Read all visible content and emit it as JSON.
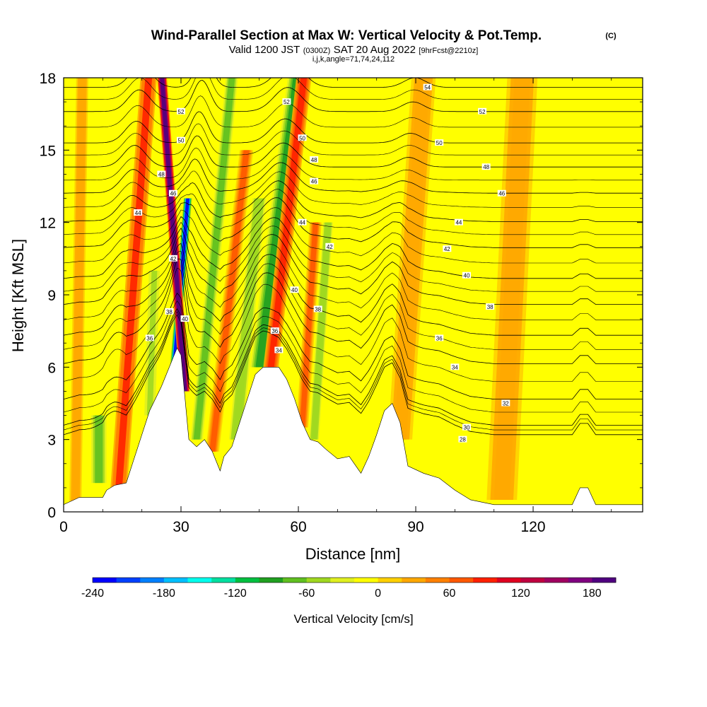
{
  "chart_data": {
    "type": "heatmap",
    "title": "Wind-Parallel Section at Max W: Vertical Velocity & Pot.Temp.",
    "title_mark": "(C)",
    "subtitle_parts": [
      "Valid 1200 JST",
      "(0300Z)",
      "SAT 20 Aug 2022",
      "[9hrFcst@2210z]"
    ],
    "subtitle2": "i,j,k,angle=71,74,24,112",
    "xlabel": "Distance [nm]",
    "ylabel": "Height [Kft MSL]",
    "xlim": [
      0,
      148
    ],
    "ylim": [
      0,
      18
    ],
    "xticks": [
      0,
      30,
      60,
      90,
      120
    ],
    "yticks": [
      0,
      3,
      6,
      9,
      12,
      15,
      18
    ],
    "colorbar": {
      "label": "Vertical Velocity [cm/s]",
      "range": [
        -240,
        200
      ],
      "ticks": [
        -240,
        -180,
        -120,
        -60,
        0,
        60,
        120,
        180
      ],
      "colors": [
        "#0000ff",
        "#0040ff",
        "#0080ff",
        "#00c0ff",
        "#00ffee",
        "#00e0a0",
        "#00c040",
        "#20a020",
        "#60c020",
        "#a0d820",
        "#e0f020",
        "#ffff00",
        "#ffd000",
        "#ffa800",
        "#ff8000",
        "#ff5800",
        "#ff2000",
        "#e00020",
        "#c00040",
        "#a00060",
        "#800080",
        "#500080"
      ]
    },
    "terrain": [
      [
        0,
        0.3
      ],
      [
        4,
        0.6
      ],
      [
        10,
        0.6
      ],
      [
        11,
        0.9
      ],
      [
        13,
        1.1
      ],
      [
        16,
        1.2
      ],
      [
        18,
        2.2
      ],
      [
        20,
        3.2
      ],
      [
        22,
        4.2
      ],
      [
        25,
        5.2
      ],
      [
        27,
        6.0
      ],
      [
        29,
        6.8
      ],
      [
        30,
        6.5
      ],
      [
        32,
        3.0
      ],
      [
        34,
        2.7
      ],
      [
        36,
        3.0
      ],
      [
        38,
        2.5
      ],
      [
        40,
        1.7
      ],
      [
        41,
        2.3
      ],
      [
        43,
        2.7
      ],
      [
        45,
        3.7
      ],
      [
        47,
        4.7
      ],
      [
        49,
        5.7
      ],
      [
        51,
        6.0
      ],
      [
        55,
        6.0
      ],
      [
        57,
        5.5
      ],
      [
        59,
        4.7
      ],
      [
        61,
        3.7
      ],
      [
        63,
        3.0
      ],
      [
        65,
        2.9
      ],
      [
        67,
        2.6
      ],
      [
        70,
        2.2
      ],
      [
        73,
        2.3
      ],
      [
        76,
        1.6
      ],
      [
        78,
        2.3
      ],
      [
        80,
        3.2
      ],
      [
        82,
        4.2
      ],
      [
        84,
        4.5
      ],
      [
        86,
        3.7
      ],
      [
        88,
        1.9
      ],
      [
        92,
        1.6
      ],
      [
        96,
        1.4
      ],
      [
        100,
        0.9
      ],
      [
        104,
        0.5
      ],
      [
        110,
        0.3
      ],
      [
        130,
        0.3
      ],
      [
        132,
        1.0
      ],
      [
        134,
        1.0
      ],
      [
        136,
        0.3
      ],
      [
        148,
        0.3
      ]
    ],
    "w_field": [
      {
        "x": 14,
        "z0": 0.8,
        "z1": 18,
        "w": 80,
        "tilt": 0.45,
        "width": 2.2
      },
      {
        "x": 9,
        "z0": 1.2,
        "z1": 4.0,
        "w": -70,
        "tilt": 0,
        "width": 2.5
      },
      {
        "x": 22,
        "z0": 4.0,
        "z1": 10.0,
        "w": -50,
        "tilt": 0.2,
        "width": 1.8
      },
      {
        "x": 28,
        "z0": 5.5,
        "z1": 13.0,
        "w": -240,
        "tilt": 0.5,
        "width": 1.1
      },
      {
        "x": 31,
        "z0": 5.0,
        "z1": 18.0,
        "w": 200,
        "tilt": -0.45,
        "width": 1.3
      },
      {
        "x": 34,
        "z0": 3.0,
        "z1": 18.0,
        "w": -80,
        "tilt": 0.6,
        "width": 2.0
      },
      {
        "x": 38,
        "z0": 2.5,
        "z1": 15.0,
        "w": 70,
        "tilt": 0.7,
        "width": 1.8
      },
      {
        "x": 44,
        "z0": 3.0,
        "z1": 13.0,
        "w": -60,
        "tilt": 0.6,
        "width": 2.2
      },
      {
        "x": 50,
        "z0": 6.0,
        "z1": 18.0,
        "w": -90,
        "tilt": 0.8,
        "width": 2.4
      },
      {
        "x": 53,
        "z0": 6.0,
        "z1": 18.0,
        "w": 90,
        "tilt": 0.7,
        "width": 2.0
      },
      {
        "x": 61,
        "z0": 3.5,
        "z1": 12.0,
        "w": 70,
        "tilt": 0.4,
        "width": 1.6
      },
      {
        "x": 64,
        "z0": 3.0,
        "z1": 12.0,
        "w": -60,
        "tilt": 0.4,
        "width": 1.6
      },
      {
        "x": 86,
        "z0": 3.0,
        "z1": 18.0,
        "w": 35,
        "tilt": 0.4,
        "width": 4.0
      },
      {
        "x": 112,
        "z0": 0.5,
        "z1": 18.0,
        "w": 30,
        "tilt": 0.3,
        "width": 5.0
      },
      {
        "x": 3,
        "z0": 0.3,
        "z1": 18.0,
        "w": 35,
        "tilt": 0.1,
        "width": 2.0
      }
    ],
    "isentrope_values": [
      28,
      30,
      32,
      34,
      36,
      38,
      40,
      42,
      44,
      46,
      48,
      50,
      52,
      54
    ],
    "isentrope_heights_far": [
      3.0,
      3.4,
      4.5,
      6.0,
      7.2,
      8.5,
      9.6,
      10.9,
      12.0,
      13.2,
      14.3,
      15.3,
      16.6,
      17.6
    ],
    "contour_labels": [
      {
        "text": "54",
        "x": 93,
        "z": 17.6
      },
      {
        "text": "52",
        "x": 107,
        "z": 16.6
      },
      {
        "text": "50",
        "x": 96,
        "z": 15.3
      },
      {
        "text": "48",
        "x": 108,
        "z": 14.3
      },
      {
        "text": "46",
        "x": 112,
        "z": 13.2
      },
      {
        "text": "44",
        "x": 101,
        "z": 12.0
      },
      {
        "text": "42",
        "x": 98,
        "z": 10.9
      },
      {
        "text": "40",
        "x": 103,
        "z": 9.8
      },
      {
        "text": "38",
        "x": 109,
        "z": 8.5
      },
      {
        "text": "36",
        "x": 96,
        "z": 7.2
      },
      {
        "text": "34",
        "x": 100,
        "z": 6.0
      },
      {
        "text": "32",
        "x": 113,
        "z": 4.5
      },
      {
        "text": "30",
        "x": 103,
        "z": 3.5
      },
      {
        "text": "28",
        "x": 102,
        "z": 3.0
      },
      {
        "text": "52",
        "x": 57,
        "z": 17.0
      },
      {
        "text": "50",
        "x": 61,
        "z": 15.5
      },
      {
        "text": "48",
        "x": 64,
        "z": 14.6
      },
      {
        "text": "46",
        "x": 64,
        "z": 13.7
      },
      {
        "text": "44",
        "x": 61,
        "z": 12.0
      },
      {
        "text": "42",
        "x": 68,
        "z": 11.0
      },
      {
        "text": "40",
        "x": 59,
        "z": 9.2
      },
      {
        "text": "38",
        "x": 65,
        "z": 8.4
      },
      {
        "text": "36",
        "x": 54,
        "z": 7.5
      },
      {
        "text": "34",
        "x": 55,
        "z": 6.7
      },
      {
        "text": "52",
        "x": 30,
        "z": 16.6
      },
      {
        "text": "50",
        "x": 30,
        "z": 15.4
      },
      {
        "text": "48",
        "x": 25,
        "z": 14.0
      },
      {
        "text": "46",
        "x": 28,
        "z": 13.2
      },
      {
        "text": "44",
        "x": 19,
        "z": 12.4
      },
      {
        "text": "42",
        "x": 28,
        "z": 10.5
      },
      {
        "text": "38",
        "x": 27,
        "z": 8.3
      },
      {
        "text": "40",
        "x": 31,
        "z": 8.0
      },
      {
        "text": "36",
        "x": 22,
        "z": 7.2
      }
    ]
  }
}
